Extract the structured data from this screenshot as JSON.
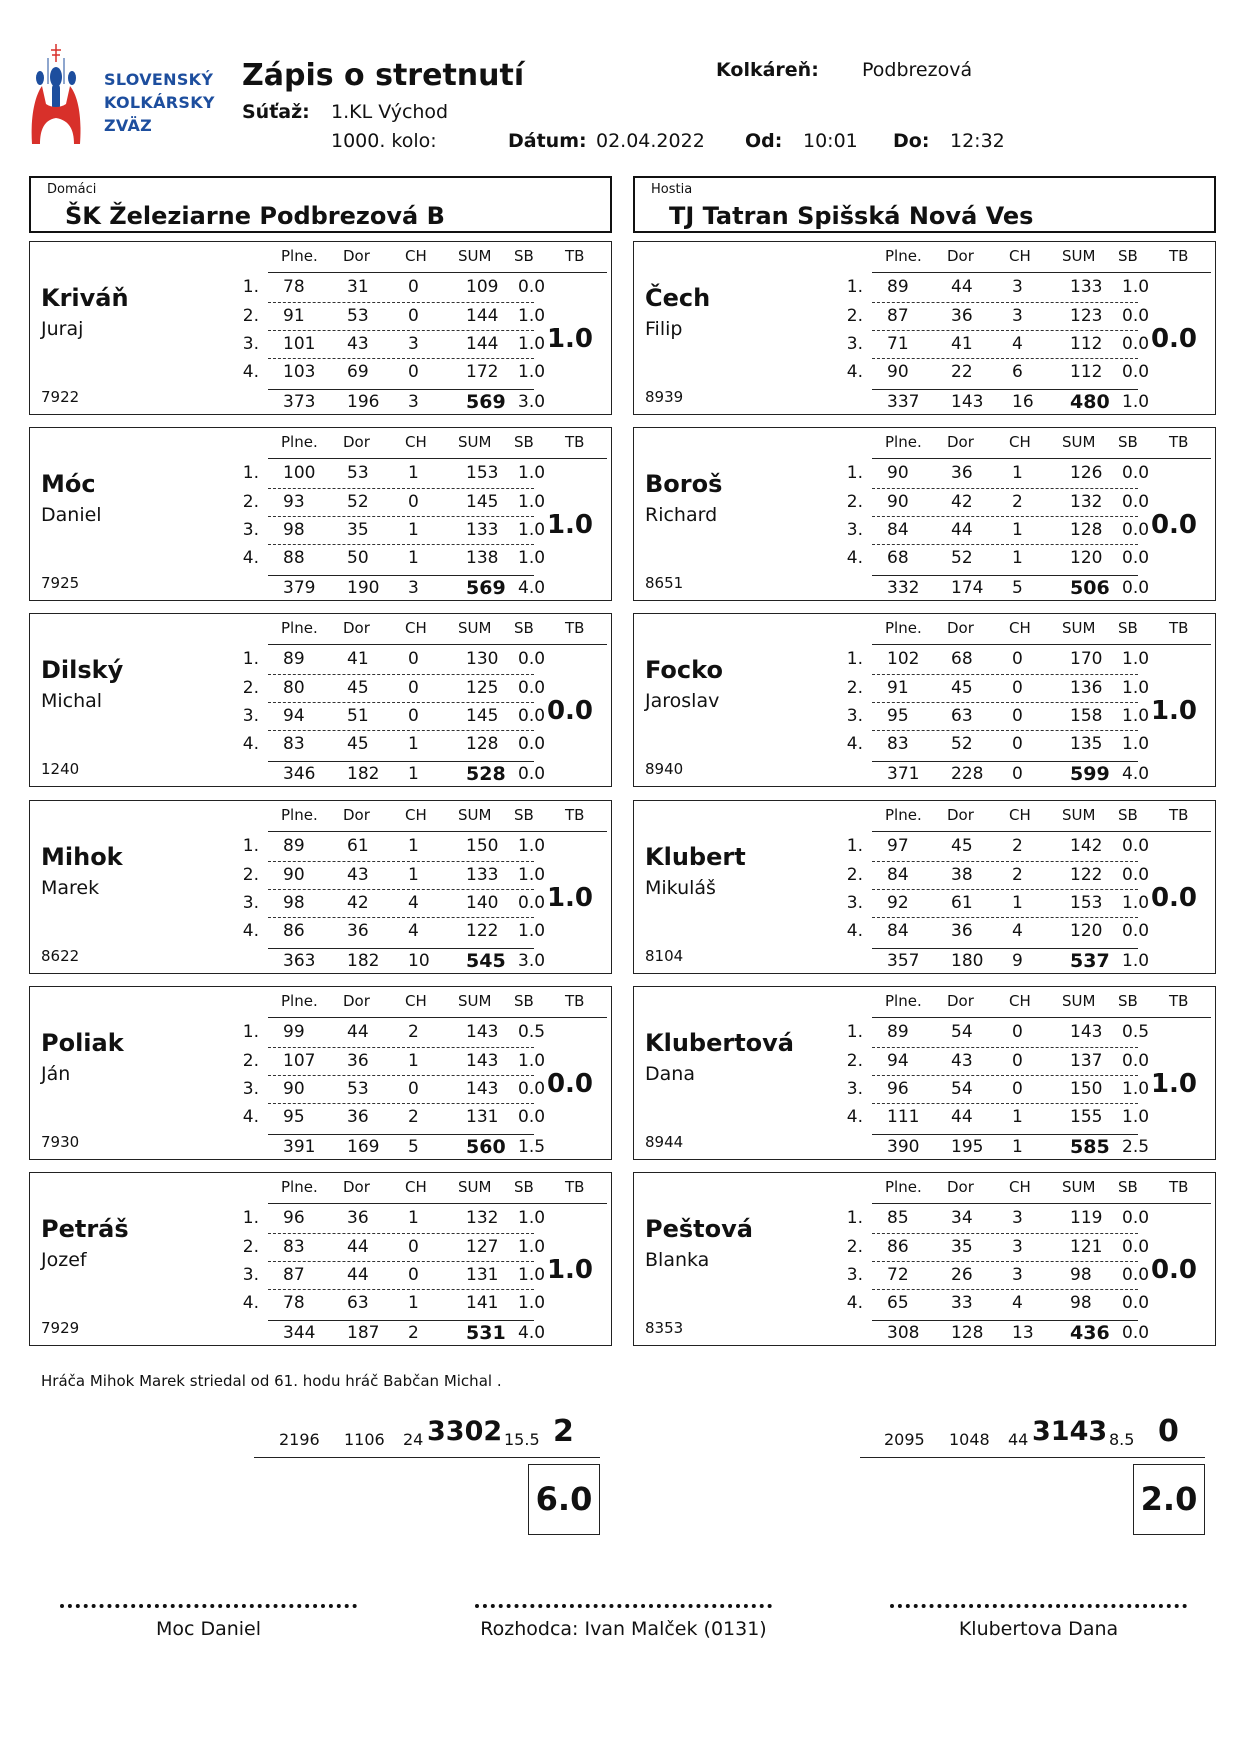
{
  "logo": {
    "lines": [
      "SLOVENSKÝ",
      "KOLKÁRSKY",
      "ZVÄZ"
    ],
    "colors": {
      "blue": "#1d4e9e",
      "red": "#d8302a"
    }
  },
  "header": {
    "title": "Zápis o stretnutí",
    "alley_label": "Kolkáreň:",
    "alley": "Podbrezová",
    "competition_label": "Súťaž:",
    "competition": "1.KL Východ",
    "round": "1000. kolo:",
    "date_label": "Dátum:",
    "date": "02.04.2022",
    "from_label": "Od:",
    "from": "10:01",
    "to_label": "Do:",
    "to": "12:32"
  },
  "columns": [
    "Plne.",
    "Dor",
    "CH",
    "SUM",
    "SB",
    "TB"
  ],
  "home": {
    "caption": "Domáci",
    "name": "ŠK Železiarne Podbrezová B",
    "players": [
      {
        "surname": "Kriváň",
        "first": "Juraj",
        "id": "7922",
        "rows": [
          [
            "78",
            "31",
            "0",
            "109",
            "0.0"
          ],
          [
            "91",
            "53",
            "0",
            "144",
            "1.0"
          ],
          [
            "101",
            "43",
            "3",
            "144",
            "1.0"
          ],
          [
            "103",
            "69",
            "0",
            "172",
            "1.0"
          ]
        ],
        "total": [
          "373",
          "196",
          "3",
          "569",
          "3.0"
        ],
        "tb": "1.0"
      },
      {
        "surname": "Móc",
        "first": "Daniel",
        "id": "7925",
        "rows": [
          [
            "100",
            "53",
            "1",
            "153",
            "1.0"
          ],
          [
            "93",
            "52",
            "0",
            "145",
            "1.0"
          ],
          [
            "98",
            "35",
            "1",
            "133",
            "1.0"
          ],
          [
            "88",
            "50",
            "1",
            "138",
            "1.0"
          ]
        ],
        "total": [
          "379",
          "190",
          "3",
          "569",
          "4.0"
        ],
        "tb": "1.0"
      },
      {
        "surname": "Dilský",
        "first": "Michal",
        "id": "1240",
        "rows": [
          [
            "89",
            "41",
            "0",
            "130",
            "0.0"
          ],
          [
            "80",
            "45",
            "0",
            "125",
            "0.0"
          ],
          [
            "94",
            "51",
            "0",
            "145",
            "0.0"
          ],
          [
            "83",
            "45",
            "1",
            "128",
            "0.0"
          ]
        ],
        "total": [
          "346",
          "182",
          "1",
          "528",
          "0.0"
        ],
        "tb": "0.0"
      },
      {
        "surname": "Mihok",
        "first": "Marek",
        "id": "8622",
        "rows": [
          [
            "89",
            "61",
            "1",
            "150",
            "1.0"
          ],
          [
            "90",
            "43",
            "1",
            "133",
            "1.0"
          ],
          [
            "98",
            "42",
            "4",
            "140",
            "0.0"
          ],
          [
            "86",
            "36",
            "4",
            "122",
            "1.0"
          ]
        ],
        "total": [
          "363",
          "182",
          "10",
          "545",
          "3.0"
        ],
        "tb": "1.0"
      },
      {
        "surname": "Poliak",
        "first": "Ján",
        "id": "7930",
        "rows": [
          [
            "99",
            "44",
            "2",
            "143",
            "0.5"
          ],
          [
            "107",
            "36",
            "1",
            "143",
            "1.0"
          ],
          [
            "90",
            "53",
            "0",
            "143",
            "0.0"
          ],
          [
            "95",
            "36",
            "2",
            "131",
            "0.0"
          ]
        ],
        "total": [
          "391",
          "169",
          "5",
          "560",
          "1.5"
        ],
        "tb": "0.0"
      },
      {
        "surname": "Petráš",
        "first": "Jozef",
        "id": "7929",
        "rows": [
          [
            "96",
            "36",
            "1",
            "132",
            "1.0"
          ],
          [
            "83",
            "44",
            "0",
            "127",
            "1.0"
          ],
          [
            "87",
            "44",
            "0",
            "131",
            "1.0"
          ],
          [
            "78",
            "63",
            "1",
            "141",
            "1.0"
          ]
        ],
        "total": [
          "344",
          "187",
          "2",
          "531",
          "4.0"
        ],
        "tb": "1.0"
      }
    ],
    "totals": {
      "plne": "2196",
      "dor": "1106",
      "ch": "24",
      "sum": "3302",
      "sb": "15.5",
      "tb": "2"
    },
    "points": "6.0"
  },
  "guest": {
    "caption": "Hostia",
    "name": "TJ Tatran Spišská Nová Ves",
    "players": [
      {
        "surname": "Čech",
        "first": "Filip",
        "id": "8939",
        "rows": [
          [
            "89",
            "44",
            "3",
            "133",
            "1.0"
          ],
          [
            "87",
            "36",
            "3",
            "123",
            "0.0"
          ],
          [
            "71",
            "41",
            "4",
            "112",
            "0.0"
          ],
          [
            "90",
            "22",
            "6",
            "112",
            "0.0"
          ]
        ],
        "total": [
          "337",
          "143",
          "16",
          "480",
          "1.0"
        ],
        "tb": "0.0"
      },
      {
        "surname": "Boroš",
        "first": "Richard",
        "id": "8651",
        "rows": [
          [
            "90",
            "36",
            "1",
            "126",
            "0.0"
          ],
          [
            "90",
            "42",
            "2",
            "132",
            "0.0"
          ],
          [
            "84",
            "44",
            "1",
            "128",
            "0.0"
          ],
          [
            "68",
            "52",
            "1",
            "120",
            "0.0"
          ]
        ],
        "total": [
          "332",
          "174",
          "5",
          "506",
          "0.0"
        ],
        "tb": "0.0"
      },
      {
        "surname": "Focko",
        "first": "Jaroslav",
        "id": "8940",
        "rows": [
          [
            "102",
            "68",
            "0",
            "170",
            "1.0"
          ],
          [
            "91",
            "45",
            "0",
            "136",
            "1.0"
          ],
          [
            "95",
            "63",
            "0",
            "158",
            "1.0"
          ],
          [
            "83",
            "52",
            "0",
            "135",
            "1.0"
          ]
        ],
        "total": [
          "371",
          "228",
          "0",
          "599",
          "4.0"
        ],
        "tb": "1.0"
      },
      {
        "surname": "Klubert",
        "first": "Mikuláš",
        "id": "8104",
        "rows": [
          [
            "97",
            "45",
            "2",
            "142",
            "0.0"
          ],
          [
            "84",
            "38",
            "2",
            "122",
            "0.0"
          ],
          [
            "92",
            "61",
            "1",
            "153",
            "1.0"
          ],
          [
            "84",
            "36",
            "4",
            "120",
            "0.0"
          ]
        ],
        "total": [
          "357",
          "180",
          "9",
          "537",
          "1.0"
        ],
        "tb": "0.0"
      },
      {
        "surname": "Klubertová",
        "first": "Dana",
        "id": "8944",
        "rows": [
          [
            "89",
            "54",
            "0",
            "143",
            "0.5"
          ],
          [
            "94",
            "43",
            "0",
            "137",
            "0.0"
          ],
          [
            "96",
            "54",
            "0",
            "150",
            "1.0"
          ],
          [
            "111",
            "44",
            "1",
            "155",
            "1.0"
          ]
        ],
        "total": [
          "390",
          "195",
          "1",
          "585",
          "2.5"
        ],
        "tb": "1.0"
      },
      {
        "surname": "Peštová",
        "first": "Blanka",
        "id": "8353",
        "rows": [
          [
            "85",
            "34",
            "3",
            "119",
            "0.0"
          ],
          [
            "86",
            "35",
            "3",
            "121",
            "0.0"
          ],
          [
            "72",
            "26",
            "3",
            "98",
            "0.0"
          ],
          [
            "65",
            "33",
            "4",
            "98",
            "0.0"
          ]
        ],
        "total": [
          "308",
          "128",
          "13",
          "436",
          "0.0"
        ],
        "tb": "0.0"
      }
    ],
    "totals": {
      "plne": "2095",
      "dor": "1048",
      "ch": "44",
      "sum": "3143",
      "sb": "8.5",
      "tb": "0"
    },
    "points": "2.0"
  },
  "row_numbers": [
    "1.",
    "2.",
    "3.",
    "4."
  ],
  "note": "Hráča Mihok Marek striedal od 61. hodu hráč Babčan Michal .",
  "signatures": {
    "home_captain": "Moc Daniel",
    "referee": "Rozhodca: Ivan Malček (0131)",
    "guest_captain": "Klubertova Dana"
  }
}
